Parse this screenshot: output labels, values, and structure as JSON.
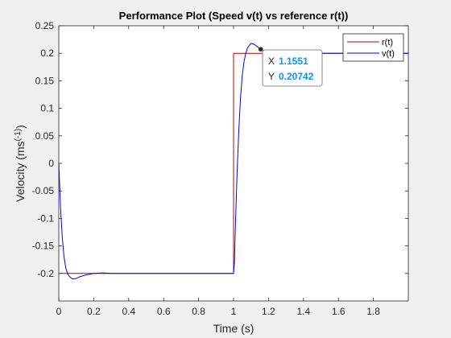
{
  "chart_data": {
    "type": "line",
    "title": "Performance Plot (Speed v(t) vs reference r(t))",
    "xlabel": "Time (s)",
    "ylabel": "Velocity (ms^(-1))",
    "xlim": [
      0,
      2
    ],
    "ylim": [
      -0.25,
      0.25
    ],
    "xticks": [
      0,
      0.2,
      0.4,
      0.6,
      0.8,
      1,
      1.2,
      1.4,
      1.6,
      1.8
    ],
    "xtick_labels": [
      "0",
      "0.2",
      "0.4",
      "0.6",
      "0.8",
      "1",
      "1.2",
      "1.4",
      "1.6",
      "1.8"
    ],
    "yticks": [
      -0.2,
      -0.15,
      -0.1,
      -0.05,
      0,
      0.05,
      0.1,
      0.15,
      0.2,
      0.25
    ],
    "ytick_labels": [
      "-0.2",
      "-0.15",
      "-0.1",
      "-0.05",
      "0",
      "0.05",
      "0.1",
      "0.15",
      "0.2",
      "0.25"
    ],
    "grid": false,
    "legend_position": "top-right",
    "series": [
      {
        "name": "r(t)",
        "color": "#c00000",
        "x": [
          0,
          1,
          1,
          2
        ],
        "y": [
          -0.2,
          -0.2,
          0.2,
          0.2
        ]
      },
      {
        "name": "v(t)",
        "color": "#0000ff",
        "x": [
          0,
          0.005,
          0.01,
          0.02,
          0.03,
          0.04,
          0.05,
          0.06,
          0.07,
          0.08,
          0.1,
          0.12,
          0.15,
          0.2,
          0.25,
          0.3,
          0.4,
          0.6,
          0.8,
          0.95,
          1.0,
          1.005,
          1.01,
          1.02,
          1.03,
          1.04,
          1.05,
          1.06,
          1.07,
          1.08,
          1.1,
          1.12,
          1.14,
          1.155,
          1.17,
          1.2,
          1.3,
          1.5,
          1.8,
          2.0
        ],
        "y": [
          0,
          -0.04,
          -0.08,
          -0.135,
          -0.17,
          -0.19,
          -0.2,
          -0.205,
          -0.208,
          -0.21,
          -0.209,
          -0.206,
          -0.203,
          -0.2,
          -0.199,
          -0.2,
          -0.2,
          -0.2,
          -0.2,
          -0.2,
          -0.2,
          -0.18,
          -0.12,
          -0.02,
          0.06,
          0.12,
          0.16,
          0.185,
          0.2,
          0.21,
          0.218,
          0.216,
          0.211,
          0.2074,
          0.203,
          0.2,
          0.2,
          0.2,
          0.2,
          0.2
        ]
      }
    ],
    "annotations": [
      {
        "type": "datatip",
        "x": 1.1551,
        "y": 0.20742,
        "x_label": "X",
        "x_value": "1.1551",
        "y_label": "Y",
        "y_value": "0.20742"
      }
    ]
  }
}
